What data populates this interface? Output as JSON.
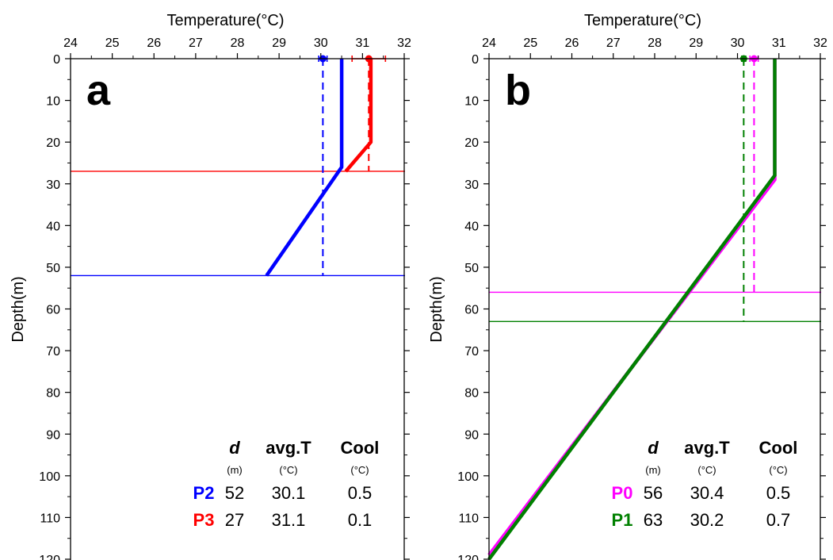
{
  "colors": {
    "p0": "#ff00ff",
    "p1": "#008000",
    "p2": "#0000ff",
    "p3": "#ff0000",
    "axis": "#000000"
  },
  "chart_data": [
    {
      "type": "line",
      "panel_label": "a",
      "xlabel": "Temperature(°C)",
      "ylabel": "Depth(m)",
      "xlim": [
        24,
        32
      ],
      "ylim": [
        0,
        120
      ],
      "x_ticks": [
        "24",
        "25",
        "26",
        "27",
        "28",
        "29",
        "30",
        "31",
        "32"
      ],
      "y_ticks": [
        "0",
        "10",
        "20",
        "30",
        "40",
        "50",
        "60",
        "70",
        "80",
        "90",
        "100",
        "110",
        "120"
      ],
      "series": [
        {
          "name": "P2",
          "color": "#0000ff",
          "profile": [
            {
              "t": 30.5,
              "depth": 0
            },
            {
              "t": 30.5,
              "depth": 26
            },
            {
              "t": 28.7,
              "depth": 52
            }
          ],
          "mld": 52,
          "avg_t": 30.05,
          "avg_t_err": 0.1
        },
        {
          "name": "P3",
          "color": "#ff0000",
          "profile": [
            {
              "t": 31.2,
              "depth": 0
            },
            {
              "t": 31.2,
              "depth": 20
            },
            {
              "t": 30.6,
              "depth": 27
            }
          ],
          "mld": 27,
          "avg_t": 31.15,
          "avg_t_err": 0.4
        }
      ],
      "table": {
        "headers": [
          "d",
          "avg.T",
          "Cool"
        ],
        "units": [
          "(m)",
          "(°C)",
          "(°C)"
        ],
        "rows": [
          {
            "label": "P2",
            "d": "52",
            "avg_t": "30.1",
            "cool": "0.5"
          },
          {
            "label": "P3",
            "d": "27",
            "avg_t": "31.1",
            "cool": "0.1"
          }
        ]
      }
    },
    {
      "type": "line",
      "panel_label": "b",
      "xlabel": "Temperature(°C)",
      "ylabel": "Depth(m)",
      "xlim": [
        24,
        32
      ],
      "ylim": [
        0,
        120
      ],
      "x_ticks": [
        "24",
        "25",
        "26",
        "27",
        "28",
        "29",
        "30",
        "31",
        "32"
      ],
      "y_ticks": [
        "0",
        "10",
        "20",
        "30",
        "40",
        "50",
        "60",
        "70",
        "80",
        "90",
        "100",
        "110",
        "120"
      ],
      "series": [
        {
          "name": "P0",
          "color": "#ff00ff",
          "profile": [
            {
              "t": 30.9,
              "depth": 0
            },
            {
              "t": 30.9,
              "depth": 29
            },
            {
              "t": 24.0,
              "depth": 119
            }
          ],
          "mld": 56,
          "avg_t": 30.4,
          "avg_t_err": 0.1
        },
        {
          "name": "P1",
          "color": "#008000",
          "profile": [
            {
              "t": 30.9,
              "depth": 0
            },
            {
              "t": 30.9,
              "depth": 28
            },
            {
              "t": 24.0,
              "depth": 120
            }
          ],
          "mld": 63,
          "avg_t": 30.15,
          "avg_t_err": 0.05
        }
      ],
      "table": {
        "headers": [
          "d",
          "avg.T",
          "Cool"
        ],
        "units": [
          "(m)",
          "(°C)",
          "(°C)"
        ],
        "rows": [
          {
            "label": "P0",
            "d": "56",
            "avg_t": "30.4",
            "cool": "0.5"
          },
          {
            "label": "P1",
            "d": "63",
            "avg_t": "30.2",
            "cool": "0.7"
          }
        ]
      }
    }
  ]
}
